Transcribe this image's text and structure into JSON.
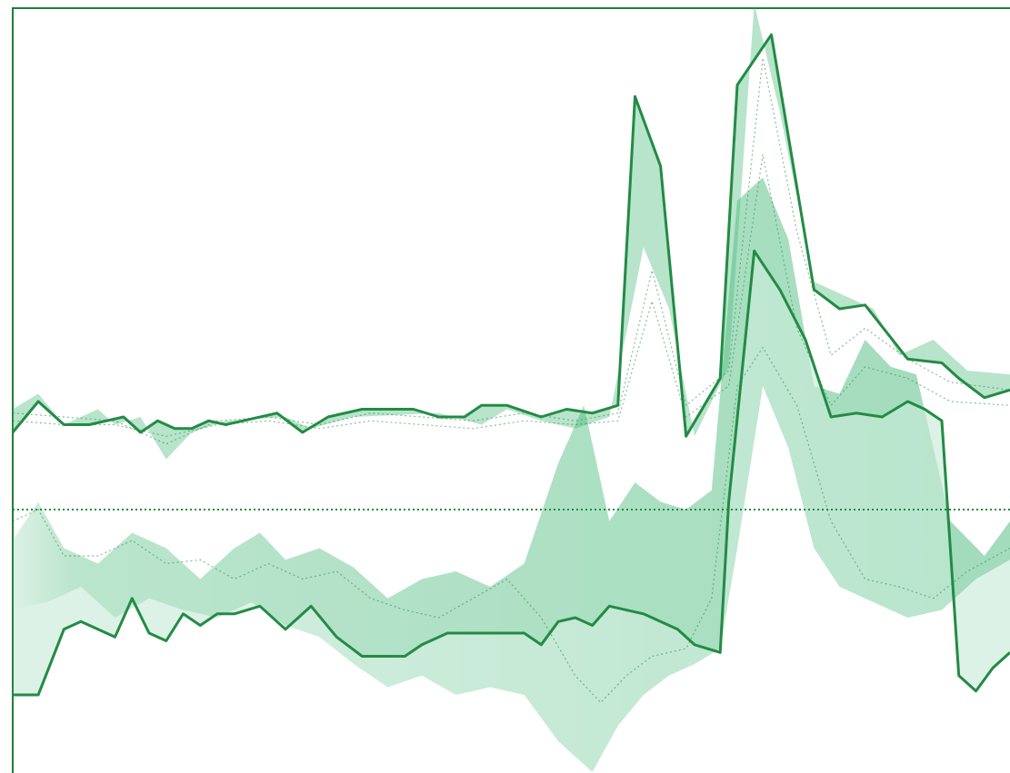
{
  "chart_data": {
    "type": "area",
    "grid": false,
    "legend": "none",
    "ylim": [
      -1,
      1
    ],
    "colors": {
      "frame": "#1f7f3a",
      "line": "#238b45",
      "fill": "#41b877",
      "baseline": "#238b45"
    },
    "upper": {
      "main": [
        [
          0.0,
          -0.12
        ],
        [
          1.5,
          -0.04
        ],
        [
          3.0,
          -0.1
        ],
        [
          4.5,
          -0.1
        ],
        [
          6.5,
          -0.08
        ],
        [
          7.5,
          -0.12
        ],
        [
          8.5,
          -0.09
        ],
        [
          9.5,
          -0.11
        ],
        [
          10.5,
          -0.11
        ],
        [
          11.5,
          -0.09
        ],
        [
          12.5,
          -0.1
        ],
        [
          15.5,
          -0.07
        ],
        [
          17.0,
          -0.12
        ],
        [
          18.5,
          -0.08
        ],
        [
          20.5,
          -0.06
        ],
        [
          23.5,
          -0.06
        ],
        [
          25.0,
          -0.08
        ],
        [
          26.5,
          -0.08
        ],
        [
          27.5,
          -0.05
        ],
        [
          29.0,
          -0.05
        ],
        [
          31.0,
          -0.08
        ],
        [
          32.5,
          -0.06
        ],
        [
          34.0,
          -0.07
        ],
        [
          35.5,
          -0.05
        ],
        [
          36.5,
          0.75
        ],
        [
          38.0,
          0.57
        ],
        [
          39.5,
          -0.13
        ],
        [
          41.5,
          0.02
        ],
        [
          42.5,
          0.78
        ],
        [
          44.5,
          0.91
        ],
        [
          47.0,
          0.25
        ],
        [
          48.5,
          0.2
        ],
        [
          50.0,
          0.21
        ],
        [
          52.5,
          0.07
        ],
        [
          54.5,
          0.06
        ],
        [
          55.5,
          0.02
        ],
        [
          57.0,
          -0.03
        ],
        [
          58.5,
          -0.01
        ]
      ],
      "shade": [
        [
          0.0,
          -0.06
        ],
        [
          1.5,
          -0.02
        ],
        [
          3.0,
          -0.1
        ],
        [
          5.0,
          -0.06
        ],
        [
          6.0,
          -0.1
        ],
        [
          7.5,
          -0.08
        ],
        [
          9.0,
          -0.19
        ],
        [
          10.5,
          -0.12
        ],
        [
          12.5,
          -0.09
        ],
        [
          16.0,
          -0.08
        ],
        [
          17.5,
          -0.11
        ],
        [
          20.0,
          -0.08
        ],
        [
          25.0,
          -0.07
        ],
        [
          27.5,
          -0.1
        ],
        [
          29.0,
          -0.06
        ],
        [
          31.0,
          -0.09
        ],
        [
          33.0,
          -0.11
        ],
        [
          35.0,
          -0.08
        ],
        [
          37.0,
          0.36
        ],
        [
          38.5,
          0.2
        ],
        [
          40.0,
          -0.13
        ],
        [
          42.0,
          0.05
        ],
        [
          43.5,
          0.99
        ],
        [
          45.0,
          0.71
        ],
        [
          47.0,
          0.27
        ],
        [
          50.5,
          0.2
        ],
        [
          52.0,
          0.08
        ],
        [
          54.0,
          0.12
        ],
        [
          56.0,
          0.04
        ],
        [
          58.5,
          0.03
        ]
      ],
      "dotted": [
        [
          [
            0.0,
            -0.07
          ],
          [
            3.0,
            -0.08
          ],
          [
            6.0,
            -0.09
          ],
          [
            9.0,
            -0.15
          ],
          [
            12.0,
            -0.09
          ],
          [
            15.0,
            -0.08
          ],
          [
            18.0,
            -0.1
          ],
          [
            21.0,
            -0.07
          ],
          [
            24.0,
            -0.08
          ],
          [
            27.0,
            -0.09
          ],
          [
            30.0,
            -0.07
          ],
          [
            33.0,
            -0.09
          ],
          [
            35.5,
            -0.07
          ],
          [
            37.5,
            0.3
          ],
          [
            39.5,
            -0.05
          ],
          [
            42.0,
            0.04
          ],
          [
            44.0,
            0.85
          ],
          [
            46.0,
            0.4
          ],
          [
            48.0,
            0.08
          ],
          [
            50.0,
            0.15
          ],
          [
            52.5,
            0.07
          ],
          [
            55.0,
            0.01
          ],
          [
            58.5,
            -0.01
          ]
        ],
        [
          [
            0.0,
            -0.09
          ],
          [
            3.0,
            -0.1
          ],
          [
            6.0,
            -0.1
          ],
          [
            9.0,
            -0.13
          ],
          [
            12.0,
            -0.1
          ],
          [
            15.0,
            -0.09
          ],
          [
            18.0,
            -0.11
          ],
          [
            21.0,
            -0.09
          ],
          [
            24.0,
            -0.1
          ],
          [
            27.0,
            -0.11
          ],
          [
            30.0,
            -0.09
          ],
          [
            33.0,
            -0.1
          ],
          [
            35.5,
            -0.09
          ],
          [
            37.5,
            0.22
          ],
          [
            39.5,
            -0.08
          ],
          [
            42.0,
            0.0
          ],
          [
            44.0,
            0.6
          ],
          [
            46.0,
            0.15
          ],
          [
            48.0,
            -0.05
          ],
          [
            50.0,
            0.05
          ],
          [
            52.5,
            0.02
          ],
          [
            55.0,
            -0.04
          ],
          [
            58.5,
            -0.05
          ]
        ]
      ]
    },
    "lower": {
      "main": [
        [
          0.0,
          -0.8
        ],
        [
          1.5,
          -0.8
        ],
        [
          3.0,
          -0.63
        ],
        [
          4.0,
          -0.61
        ],
        [
          6.0,
          -0.65
        ],
        [
          7.0,
          -0.55
        ],
        [
          8.0,
          -0.64
        ],
        [
          9.0,
          -0.66
        ],
        [
          10.0,
          -0.59
        ],
        [
          11.0,
          -0.62
        ],
        [
          12.0,
          -0.59
        ],
        [
          13.0,
          -0.59
        ],
        [
          14.5,
          -0.57
        ],
        [
          16.0,
          -0.63
        ],
        [
          17.5,
          -0.57
        ],
        [
          19.0,
          -0.65
        ],
        [
          20.5,
          -0.7
        ],
        [
          23.0,
          -0.7
        ],
        [
          24.0,
          -0.67
        ],
        [
          25.5,
          -0.64
        ],
        [
          29.0,
          -0.64
        ],
        [
          30.0,
          -0.64
        ],
        [
          31.0,
          -0.67
        ],
        [
          32.0,
          -0.61
        ],
        [
          33.0,
          -0.6
        ],
        [
          34.0,
          -0.62
        ],
        [
          35.0,
          -0.57
        ],
        [
          37.0,
          -0.59
        ],
        [
          38.0,
          -0.61
        ],
        [
          39.0,
          -0.63
        ],
        [
          40.0,
          -0.67
        ],
        [
          41.5,
          -0.69
        ],
        [
          42.0,
          -0.3
        ],
        [
          43.5,
          0.35
        ],
        [
          45.0,
          0.25
        ],
        [
          46.5,
          0.12
        ],
        [
          48.0,
          -0.08
        ],
        [
          49.5,
          -0.07
        ],
        [
          51.0,
          -0.08
        ],
        [
          52.5,
          -0.04
        ],
        [
          53.5,
          -0.06
        ],
        [
          54.5,
          -0.09
        ],
        [
          55.5,
          -0.75
        ],
        [
          56.5,
          -0.79
        ],
        [
          57.5,
          -0.73
        ],
        [
          58.5,
          -0.69
        ]
      ],
      "upper_bound": [
        [
          0.0,
          -0.4
        ],
        [
          1.5,
          -0.3
        ],
        [
          3.0,
          -0.42
        ],
        [
          5.0,
          -0.46
        ],
        [
          7.0,
          -0.38
        ],
        [
          9.0,
          -0.42
        ],
        [
          11.0,
          -0.5
        ],
        [
          13.0,
          -0.42
        ],
        [
          14.5,
          -0.38
        ],
        [
          16.0,
          -0.45
        ],
        [
          18.0,
          -0.42
        ],
        [
          20.0,
          -0.47
        ],
        [
          22.0,
          -0.55
        ],
        [
          24.0,
          -0.5
        ],
        [
          26.0,
          -0.48
        ],
        [
          28.0,
          -0.52
        ],
        [
          30.0,
          -0.46
        ],
        [
          32.0,
          -0.2
        ],
        [
          33.5,
          -0.05
        ],
        [
          35.0,
          -0.35
        ],
        [
          36.5,
          -0.25
        ],
        [
          38.0,
          -0.3
        ],
        [
          39.5,
          -0.32
        ],
        [
          41.0,
          -0.27
        ],
        [
          42.5,
          0.48
        ],
        [
          44.0,
          0.54
        ],
        [
          45.5,
          0.38
        ],
        [
          47.0,
          0.0
        ],
        [
          48.5,
          -0.02
        ],
        [
          50.0,
          0.12
        ],
        [
          51.5,
          0.05
        ],
        [
          53.0,
          0.03
        ],
        [
          55.0,
          -0.35
        ],
        [
          57.0,
          -0.44
        ],
        [
          58.5,
          -0.35
        ]
      ],
      "lower_bound": [
        [
          0.0,
          -0.58
        ],
        [
          2.0,
          -0.56
        ],
        [
          4.0,
          -0.52
        ],
        [
          6.0,
          -0.6
        ],
        [
          8.0,
          -0.55
        ],
        [
          10.0,
          -0.58
        ],
        [
          12.0,
          -0.6
        ],
        [
          14.0,
          -0.56
        ],
        [
          16.0,
          -0.62
        ],
        [
          18.0,
          -0.65
        ],
        [
          20.0,
          -0.72
        ],
        [
          22.0,
          -0.78
        ],
        [
          24.0,
          -0.75
        ],
        [
          26.0,
          -0.8
        ],
        [
          28.0,
          -0.78
        ],
        [
          30.0,
          -0.8
        ],
        [
          32.0,
          -0.92
        ],
        [
          34.0,
          -1.0
        ],
        [
          35.5,
          -0.88
        ],
        [
          37.0,
          -0.8
        ],
        [
          38.5,
          -0.75
        ],
        [
          40.0,
          -0.72
        ],
        [
          41.5,
          -0.68
        ],
        [
          42.5,
          -0.42
        ],
        [
          44.0,
          0.0
        ],
        [
          45.5,
          -0.16
        ],
        [
          47.0,
          -0.42
        ],
        [
          48.5,
          -0.52
        ],
        [
          50.0,
          -0.55
        ],
        [
          52.5,
          -0.6
        ],
        [
          54.5,
          -0.58
        ],
        [
          56.5,
          -0.5
        ],
        [
          58.5,
          -0.45
        ]
      ],
      "dotted": [
        [
          [
            0.0,
            -0.35
          ],
          [
            1.5,
            -0.32
          ],
          [
            3.0,
            -0.44
          ],
          [
            5.0,
            -0.44
          ],
          [
            7.0,
            -0.4
          ],
          [
            9.0,
            -0.46
          ],
          [
            11.0,
            -0.45
          ],
          [
            13.0,
            -0.5
          ],
          [
            15.0,
            -0.46
          ],
          [
            17.0,
            -0.5
          ],
          [
            19.0,
            -0.48
          ],
          [
            21.0,
            -0.55
          ],
          [
            23.0,
            -0.58
          ],
          [
            25.0,
            -0.6
          ],
          [
            27.0,
            -0.55
          ],
          [
            29.0,
            -0.5
          ],
          [
            31.0,
            -0.6
          ],
          [
            33.0,
            -0.75
          ],
          [
            34.5,
            -0.82
          ],
          [
            36.0,
            -0.75
          ],
          [
            37.5,
            -0.7
          ],
          [
            39.5,
            -0.68
          ],
          [
            41.0,
            -0.55
          ],
          [
            42.5,
            0.0
          ],
          [
            44.0,
            0.1
          ],
          [
            46.0,
            -0.05
          ],
          [
            48.0,
            -0.35
          ],
          [
            50.0,
            -0.5
          ],
          [
            52.0,
            -0.52
          ],
          [
            54.0,
            -0.55
          ],
          [
            56.0,
            -0.48
          ],
          [
            58.5,
            -0.42
          ]
        ]
      ]
    },
    "baseline": [
      [
        0.0,
        -0.32
      ],
      [
        58.5,
        -0.32
      ]
    ]
  }
}
